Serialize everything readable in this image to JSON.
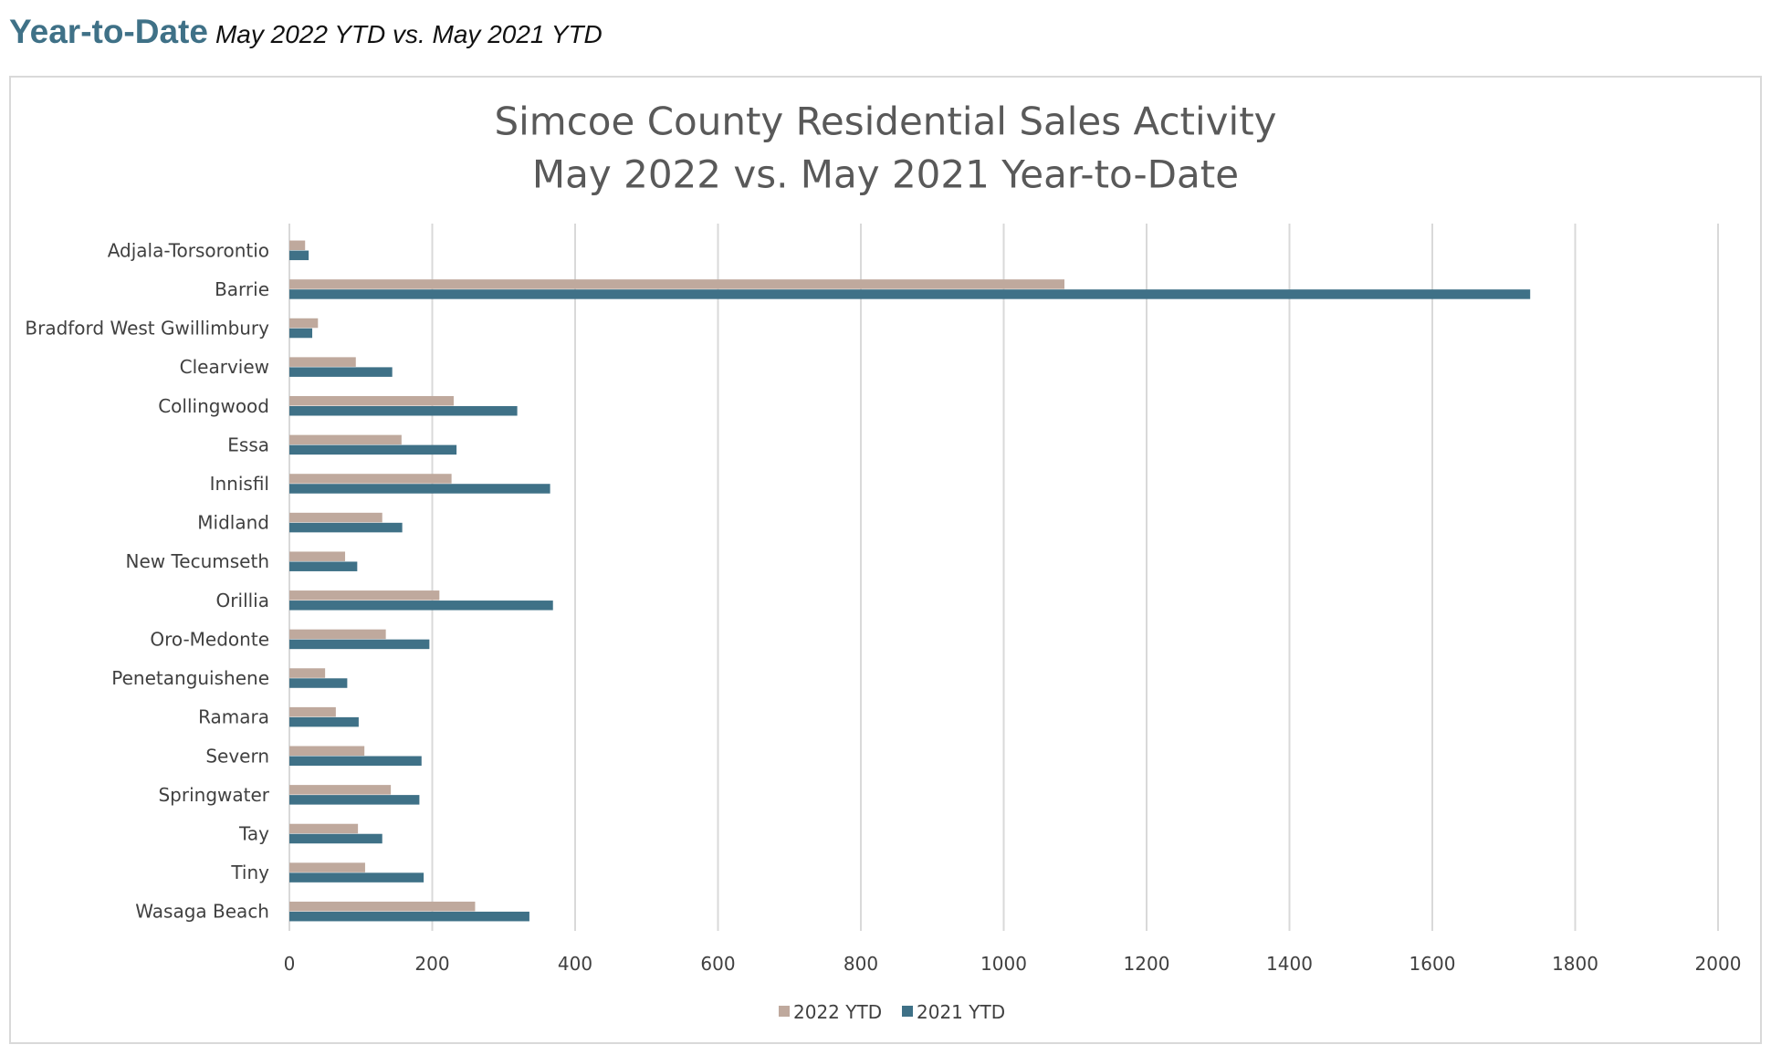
{
  "header": {
    "title": "Year-to-Date",
    "subtitle": "May 2022 YTD vs. May 2021 YTD"
  },
  "colors": {
    "series_2022": "#bfa99d",
    "series_2021": "#3f7187",
    "gridline": "#d9d9d9",
    "heading": "#3f7187"
  },
  "chart_data": {
    "type": "bar",
    "orientation": "horizontal",
    "title_lines": [
      "Simcoe County Residential Sales Activity",
      "May 2022 vs. May 2021 Year-to-Date"
    ],
    "categories": [
      "Adjala-Torsorontio",
      "Barrie",
      "Bradford West Gwillimbury",
      "Clearview",
      "Collingwood",
      "Essa",
      "Innisfil",
      "Midland",
      "New Tecumseth",
      "Orillia",
      "Oro-Medonte",
      "Penetanguishene",
      "Ramara",
      "Severn",
      "Springwater",
      "Tay",
      "Tiny",
      "Wasaga Beach"
    ],
    "series": [
      {
        "name": "2022 YTD",
        "values": [
          22,
          1085,
          40,
          93,
          230,
          157,
          227,
          130,
          78,
          210,
          135,
          50,
          65,
          105,
          142,
          96,
          106,
          260
        ]
      },
      {
        "name": "2021 YTD",
        "values": [
          27,
          1737,
          32,
          144,
          319,
          234,
          365,
          158,
          95,
          369,
          196,
          81,
          97,
          185,
          182,
          130,
          188,
          336
        ]
      }
    ],
    "xlim": [
      0,
      2000
    ],
    "x_ticks": [
      "0",
      "200",
      "400",
      "600",
      "800",
      "1000",
      "1200",
      "1400",
      "1600",
      "1800",
      "2000"
    ],
    "grid": true,
    "legend_position": "bottom"
  }
}
